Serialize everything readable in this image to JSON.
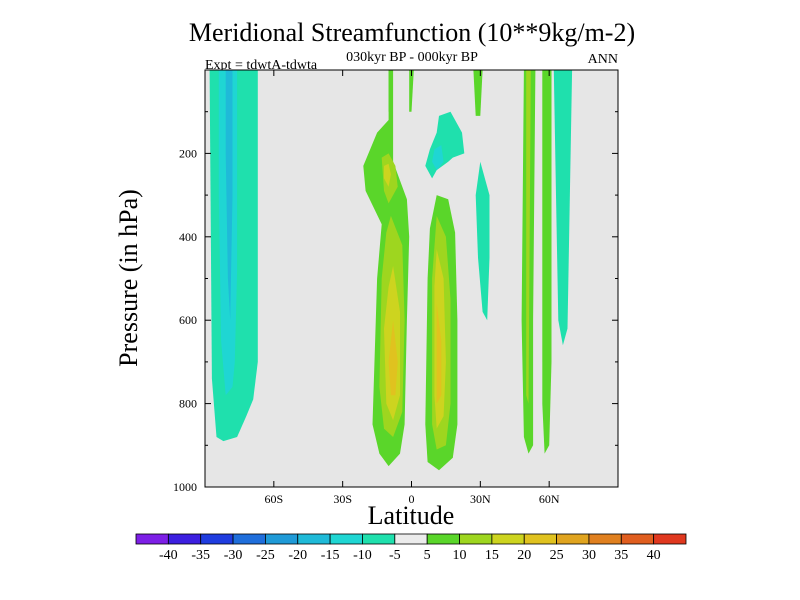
{
  "chart_data": {
    "type": "heatmap",
    "title": "Meridional Streamfunction (10**9kg/m-2)",
    "subtitle": "030kyr BP - 000kyr BP",
    "left_label": "Expt = tdwtA-tdwta",
    "right_label": "ANN",
    "xlabel": "Latitude",
    "ylabel": "Pressure (in hPa)",
    "xlim": [
      -90,
      90
    ],
    "ylim": [
      1000,
      0
    ],
    "x_ticks": [
      {
        "value": -60,
        "label": "60S"
      },
      {
        "value": -30,
        "label": "30S"
      },
      {
        "value": 0,
        "label": "0"
      },
      {
        "value": 30,
        "label": "30N"
      },
      {
        "value": 60,
        "label": "60N"
      }
    ],
    "y_ticks": [
      {
        "value": 200,
        "label": "200"
      },
      {
        "value": 400,
        "label": "400"
      },
      {
        "value": 600,
        "label": "600"
      },
      {
        "value": 800,
        "label": "800"
      },
      {
        "value": 1000,
        "label": "1000"
      }
    ],
    "background_color": "#e6e6e6",
    "colorbar": {
      "colors": [
        "#7d1fe6",
        "#3c1fe0",
        "#1f3cdf",
        "#1f6edb",
        "#1f9ad7",
        "#1fbad8",
        "#1fd6d3",
        "#1fe0ad",
        "#ececec",
        "#5ad62a",
        "#9ed61f",
        "#cdd41f",
        "#e0c21f",
        "#e0a41f",
        "#e0801f",
        "#e05e1f",
        "#e0381f"
      ],
      "labels": [
        "-40",
        "-35",
        "-30",
        "-25",
        "-20",
        "-15",
        "-10",
        "-5",
        "5",
        "10",
        "15",
        "20",
        "25",
        "30",
        "35",
        "40"
      ]
    },
    "regions": [
      {
        "name": "sh-negative-cell",
        "level": -10,
        "color": "#1fe0ad",
        "points": [
          [
            -88,
            0
          ],
          [
            -67,
            0
          ],
          [
            -67,
            700
          ],
          [
            -69,
            790
          ],
          [
            -72,
            830
          ],
          [
            -76,
            880
          ],
          [
            -82,
            890
          ],
          [
            -85,
            880
          ],
          [
            -87,
            740
          ]
        ]
      },
      {
        "name": "sh-negative-cell",
        "level": -15,
        "color": "#1fd6d3",
        "points": [
          [
            -84,
            0
          ],
          [
            -76,
            0
          ],
          [
            -76,
            480
          ],
          [
            -77,
            700
          ],
          [
            -78,
            760
          ],
          [
            -81,
            780
          ],
          [
            -83,
            650
          ],
          [
            -84,
            300
          ]
        ]
      },
      {
        "name": "sh-negative-cell",
        "level": -20,
        "color": "#1fbad8",
        "points": [
          [
            -81,
            0
          ],
          [
            -78,
            0
          ],
          [
            -78,
            300
          ],
          [
            -79,
            600
          ],
          [
            -80,
            500
          ],
          [
            -81,
            200
          ]
        ]
      },
      {
        "name": "equatorial-positive",
        "level": 5,
        "color": "#5ad62a",
        "points": [
          [
            -10,
            0
          ],
          [
            -8,
            0
          ],
          [
            -8,
            220
          ],
          [
            -2,
            310
          ],
          [
            -1,
            400
          ],
          [
            -2,
            600
          ],
          [
            -3,
            850
          ],
          [
            -5,
            920
          ],
          [
            -10,
            950
          ],
          [
            -14,
            920
          ],
          [
            -17,
            850
          ],
          [
            -15,
            500
          ],
          [
            -13,
            370
          ],
          [
            -20,
            290
          ],
          [
            -21,
            230
          ],
          [
            -15,
            150
          ],
          [
            -10,
            120
          ]
        ]
      },
      {
        "name": "equatorial-positive",
        "level": 10,
        "color": "#9ed61f",
        "points": [
          [
            -13,
            210
          ],
          [
            -10,
            200
          ],
          [
            -7,
            230
          ],
          [
            -6,
            280
          ],
          [
            -10,
            320
          ],
          [
            -12,
            290
          ]
        ]
      },
      {
        "name": "equatorial-positive",
        "level": 10,
        "color": "#9ed61f",
        "points": [
          [
            -9,
            350
          ],
          [
            -4,
            420
          ],
          [
            -3,
            600
          ],
          [
            -4,
            820
          ],
          [
            -8,
            880
          ],
          [
            -12,
            860
          ],
          [
            -14,
            760
          ],
          [
            -13,
            500
          ],
          [
            -11,
            390
          ]
        ]
      },
      {
        "name": "equatorial-positive",
        "level": 15,
        "color": "#cdd41f",
        "points": [
          [
            -12,
            230
          ],
          [
            -10,
            225
          ],
          [
            -9,
            250
          ],
          [
            -10,
            280
          ],
          [
            -12,
            260
          ]
        ]
      },
      {
        "name": "equatorial-positive",
        "level": 15,
        "color": "#cdd41f",
        "points": [
          [
            -8,
            470
          ],
          [
            -5,
            580
          ],
          [
            -5,
            780
          ],
          [
            -8,
            840
          ],
          [
            -11,
            800
          ],
          [
            -12,
            620
          ],
          [
            -10,
            520
          ]
        ]
      },
      {
        "name": "equatorial-positive",
        "level": 20,
        "color": "#e0c21f",
        "points": [
          [
            -8,
            600
          ],
          [
            -6,
            700
          ],
          [
            -7,
            780
          ],
          [
            -9,
            780
          ],
          [
            -10,
            700
          ]
        ]
      },
      {
        "name": "nh-equatorial-positive",
        "level": 5,
        "color": "#5ad62a",
        "points": [
          [
            11,
            300
          ],
          [
            16,
            310
          ],
          [
            19,
            390
          ],
          [
            20,
            600
          ],
          [
            20,
            850
          ],
          [
            18,
            930
          ],
          [
            12,
            960
          ],
          [
            7,
            940
          ],
          [
            6,
            850
          ],
          [
            7,
            500
          ],
          [
            8,
            380
          ]
        ]
      },
      {
        "name": "nh-equatorial-positive",
        "level": 10,
        "color": "#9ed61f",
        "points": [
          [
            11,
            350
          ],
          [
            15,
            400
          ],
          [
            17,
            550
          ],
          [
            17,
            800
          ],
          [
            15,
            900
          ],
          [
            11,
            910
          ],
          [
            9,
            850
          ],
          [
            9,
            500
          ]
        ]
      },
      {
        "name": "nh-equatorial-positive",
        "level": 15,
        "color": "#cdd41f",
        "points": [
          [
            11,
            430
          ],
          [
            14,
            500
          ],
          [
            15,
            700
          ],
          [
            14,
            830
          ],
          [
            11,
            860
          ],
          [
            10,
            780
          ],
          [
            10,
            520
          ]
        ]
      },
      {
        "name": "nh-equatorial-positive",
        "level": 20,
        "color": "#e0c21f",
        "points": [
          [
            11,
            560
          ],
          [
            13,
            650
          ],
          [
            13,
            780
          ],
          [
            11,
            800
          ],
          [
            11,
            650
          ]
        ]
      },
      {
        "name": "nh-negative-upper",
        "level": -10,
        "color": "#1fe0ad",
        "points": [
          [
            12,
            110
          ],
          [
            17,
            100
          ],
          [
            22,
            150
          ],
          [
            23,
            200
          ],
          [
            18,
            210
          ],
          [
            16,
            220
          ],
          [
            11,
            240
          ],
          [
            9,
            260
          ],
          [
            6,
            230
          ],
          [
            8,
            190
          ],
          [
            11,
            150
          ]
        ]
      },
      {
        "name": "nh-negative-upper",
        "level": -15,
        "color": "#1fd6d3",
        "points": [
          [
            10,
            190
          ],
          [
            13,
            180
          ],
          [
            14,
            220
          ],
          [
            11,
            240
          ],
          [
            9,
            220
          ]
        ]
      },
      {
        "name": "nh-negative-mid",
        "level": -10,
        "color": "#1fe0ad",
        "points": [
          [
            30,
            220
          ],
          [
            34,
            300
          ],
          [
            34,
            450
          ],
          [
            33,
            600
          ],
          [
            31,
            580
          ],
          [
            29,
            450
          ],
          [
            28,
            300
          ]
        ]
      },
      {
        "name": "nh-positive-strip",
        "level": 5,
        "color": "#5ad62a",
        "points": [
          [
            27,
            0
          ],
          [
            31,
            0
          ],
          [
            30,
            110
          ],
          [
            28,
            110
          ]
        ]
      },
      {
        "name": "nh-positive-strip",
        "level": 5,
        "color": "#5ad62a",
        "points": [
          [
            49,
            0
          ],
          [
            54,
            0
          ],
          [
            53,
            600
          ],
          [
            53,
            900
          ],
          [
            51,
            920
          ],
          [
            49,
            880
          ],
          [
            48,
            600
          ]
        ]
      },
      {
        "name": "nh-positive-strip",
        "level": 10,
        "color": "#9ed61f",
        "points": [
          [
            50,
            0
          ],
          [
            52,
            0
          ],
          [
            51,
            800
          ],
          [
            50,
            780
          ]
        ]
      },
      {
        "name": "nh-positive-strip",
        "level": 5,
        "color": "#5ad62a",
        "points": [
          [
            57,
            0
          ],
          [
            61,
            0
          ],
          [
            61,
            700
          ],
          [
            60,
            900
          ],
          [
            58,
            920
          ],
          [
            57,
            800
          ]
        ]
      },
      {
        "name": "high-lat-negative",
        "level": -10,
        "color": "#1fe0ad",
        "points": [
          [
            62,
            0
          ],
          [
            70,
            0
          ],
          [
            68,
            620
          ],
          [
            66,
            660
          ],
          [
            64,
            600
          ],
          [
            63,
            300
          ]
        ]
      },
      {
        "name": "equator-thin-strip",
        "level": 5,
        "color": "#5ad62a",
        "points": [
          [
            -10,
            0
          ],
          [
            -9,
            0
          ],
          [
            -9,
            100
          ],
          [
            -10,
            100
          ]
        ]
      },
      {
        "name": "upper-strip",
        "level": 5,
        "color": "#5ad62a",
        "points": [
          [
            -1,
            0
          ],
          [
            1,
            0
          ],
          [
            0,
            100
          ],
          [
            -1,
            100
          ]
        ]
      }
    ]
  }
}
